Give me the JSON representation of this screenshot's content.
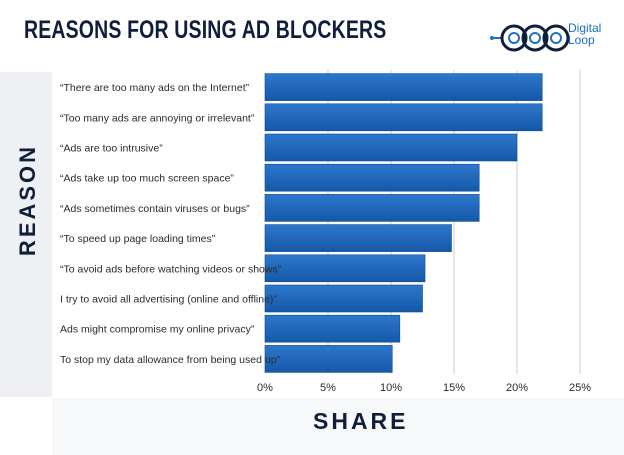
{
  "header": {
    "title": "REASONS FOR USING AD BLOCKERS",
    "brand_line1": "Digital",
    "brand_line2": "Loop"
  },
  "colors": {
    "bar": "#1c64b8",
    "bar_dark": "#1558a8",
    "title": "#0f1e3a",
    "brand": "#1e6fc6"
  },
  "chart_data": {
    "type": "bar",
    "orientation": "horizontal",
    "ylabel": "REASON",
    "xlabel": "SHARE",
    "xlim": [
      0,
      25
    ],
    "x_ticks": [
      "0%",
      "5%",
      "10%",
      "15%",
      "20%",
      "25%"
    ],
    "grid": true,
    "categories": [
      "“There are too many ads on the Internet”",
      "“Too many ads are annoying or irrelevant”",
      "“Ads are too intrusive”",
      "“Ads take up too much screen space”",
      "“Ads sometimes contain viruses or bugs”",
      "“To speed up page loading times”",
      "“To avoid ads before watching videos or shows”",
      "I try to avoid all advertising (online and offline)”",
      "Ads might compromise my online privacy”",
      "To stop my data allowance from being used up”"
    ],
    "values": [
      22,
      22,
      20,
      17,
      17,
      14.8,
      12.7,
      12.5,
      10.7,
      10.1
    ]
  }
}
